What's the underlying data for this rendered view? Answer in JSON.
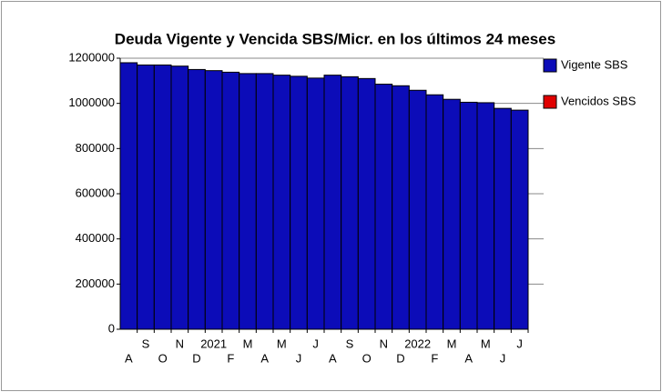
{
  "chart_data": {
    "type": "stacked_bar",
    "title": "Deuda Vigente y Vencida SBS/Micr. en los últimos 24 meses",
    "categories": [
      "A",
      "S",
      "O",
      "N",
      "D",
      "2021",
      "F",
      "M",
      "A",
      "M",
      "J",
      "J",
      "A",
      "S",
      "O",
      "N",
      "D",
      "2022",
      "F",
      "M",
      "A",
      "M",
      "J",
      "J"
    ],
    "series": [
      {
        "name": "Vigente  SBS",
        "color": "#0c0cb8",
        "values": [
          1180000,
          1170000,
          1170000,
          1165000,
          1150000,
          1145000,
          1138000,
          1132000,
          1132000,
          1125000,
          1120000,
          1112000,
          1125000,
          1118000,
          1110000,
          1085000,
          1078000,
          1058000,
          1038000,
          1018000,
          1005000,
          1003000,
          978000,
          970000
        ]
      },
      {
        "name": "Vencidos SBS",
        "color": "#e00000",
        "values": [
          0,
          0,
          0,
          0,
          0,
          0,
          0,
          0,
          0,
          0,
          0,
          0,
          0,
          0,
          0,
          0,
          0,
          0,
          0,
          0,
          0,
          0,
          0,
          0
        ]
      }
    ],
    "ylim": [
      0,
      1200000
    ],
    "yticks": [
      0,
      200000,
      400000,
      600000,
      800000,
      1000000,
      1200000
    ],
    "grid": true,
    "legend": "right"
  }
}
